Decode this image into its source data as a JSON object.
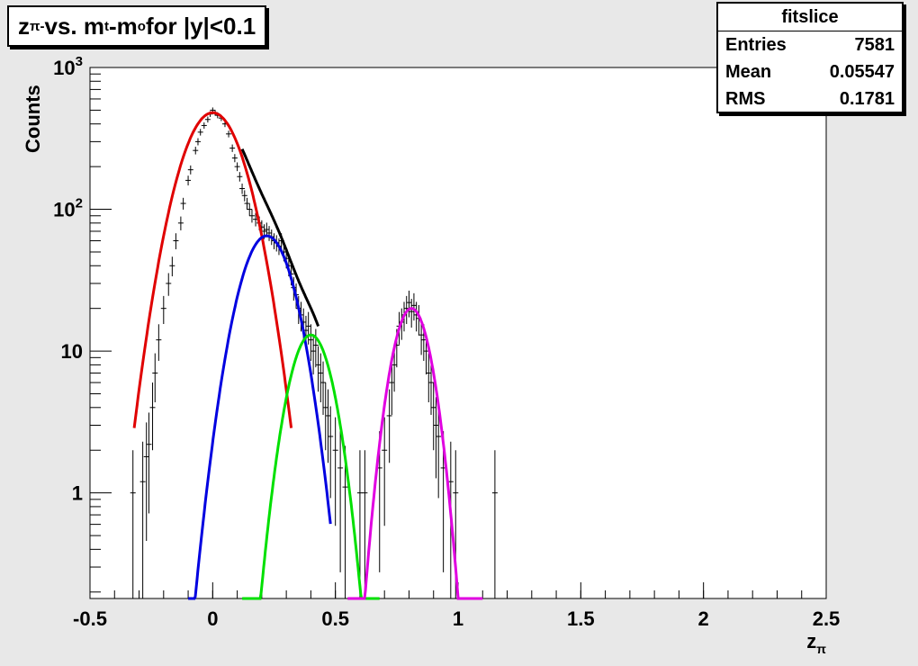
{
  "chart_data": {
    "type": "line",
    "title_main": "z",
    "title_sub1": "π-",
    "title_mid1": " vs. m",
    "title_sub2": "t",
    "title_mid2": "-m",
    "title_sub3": "o",
    "title_end": " for |y|<0.1",
    "xlabel": "z",
    "xlabel_sub": "π",
    "ylabel": "Counts",
    "xlim": [
      -0.5,
      2.5
    ],
    "ylim": [
      0.18,
      1000
    ],
    "y_scale": "log",
    "grid": false,
    "x_ticks": [
      "-0.5",
      "0",
      "0.5",
      "1",
      "1.5",
      "2",
      "2.5"
    ],
    "y_ticks": [
      {
        "label": "1",
        "value": 1
      },
      {
        "label": "10",
        "value": 10
      }
    ],
    "y_ticks_pow": [
      {
        "base": "10",
        "exp": "2",
        "value": 100
      },
      {
        "base": "10",
        "exp": "3",
        "value": 1000
      }
    ],
    "series": [
      {
        "color": "#e00000",
        "amplitude": 480,
        "mean": 0.0,
        "sigma": 0.1,
        "range": [
          -0.32,
          0.32
        ]
      },
      {
        "color": "#0000e0",
        "amplitude": 65,
        "mean": 0.22,
        "sigma": 0.085,
        "range": [
          -0.1,
          0.48
        ]
      },
      {
        "color": "#00e000",
        "amplitude": 13,
        "mean": 0.4,
        "sigma": 0.07,
        "range": [
          0.12,
          0.68
        ]
      },
      {
        "color": "#e000e0",
        "amplitude": 20,
        "mean": 0.81,
        "sigma": 0.062,
        "range": [
          0.55,
          1.1
        ]
      },
      {
        "color": "#000000",
        "type": "sum",
        "range": [
          0.12,
          0.43
        ]
      }
    ],
    "data_points": [
      [
        -0.325,
        1.0
      ],
      [
        -0.285,
        1.2
      ],
      [
        -0.27,
        1.8
      ],
      [
        -0.26,
        2.2
      ],
      [
        -0.245,
        4
      ],
      [
        -0.235,
        7
      ],
      [
        -0.22,
        12
      ],
      [
        -0.2,
        20
      ],
      [
        -0.18,
        30
      ],
      [
        -0.165,
        40
      ],
      [
        -0.15,
        60
      ],
      [
        -0.13,
        80
      ],
      [
        -0.12,
        110
      ],
      [
        -0.1,
        160
      ],
      [
        -0.09,
        190
      ],
      [
        -0.07,
        260
      ],
      [
        -0.06,
        300
      ],
      [
        -0.05,
        350
      ],
      [
        -0.035,
        390
      ],
      [
        -0.02,
        430
      ],
      [
        -0.01,
        470
      ],
      [
        0.0,
        500
      ],
      [
        0.01,
        480
      ],
      [
        0.02,
        460
      ],
      [
        0.035,
        440
      ],
      [
        0.05,
        400
      ],
      [
        0.065,
        340
      ],
      [
        0.08,
        270
      ],
      [
        0.09,
        230
      ],
      [
        0.1,
        200
      ],
      [
        0.11,
        170
      ],
      [
        0.12,
        140
      ],
      [
        0.13,
        125
      ],
      [
        0.14,
        110
      ],
      [
        0.15,
        100
      ],
      [
        0.16,
        90
      ],
      [
        0.175,
        85
      ],
      [
        0.19,
        80
      ],
      [
        0.2,
        75
      ],
      [
        0.21,
        70
      ],
      [
        0.22,
        72
      ],
      [
        0.23,
        68
      ],
      [
        0.24,
        64
      ],
      [
        0.25,
        60
      ],
      [
        0.26,
        58
      ],
      [
        0.27,
        55
      ],
      [
        0.28,
        60
      ],
      [
        0.29,
        50
      ],
      [
        0.3,
        45
      ],
      [
        0.31,
        40
      ],
      [
        0.32,
        35
      ],
      [
        0.33,
        28
      ],
      [
        0.34,
        25
      ],
      [
        0.35,
        20
      ],
      [
        0.36,
        18
      ],
      [
        0.37,
        16
      ],
      [
        0.38,
        14
      ],
      [
        0.39,
        15
      ],
      [
        0.4,
        12
      ],
      [
        0.41,
        10
      ],
      [
        0.42,
        11
      ],
      [
        0.43,
        8
      ],
      [
        0.44,
        7
      ],
      [
        0.45,
        6
      ],
      [
        0.46,
        4
      ],
      [
        0.47,
        3.5
      ],
      [
        0.48,
        2.5
      ],
      [
        0.5,
        2.0
      ],
      [
        0.52,
        1.5
      ],
      [
        0.54,
        1.1
      ],
      [
        0.6,
        1.0
      ],
      [
        0.62,
        1.0
      ],
      [
        0.68,
        1.5
      ],
      [
        0.7,
        2.0
      ],
      [
        0.72,
        3.5
      ],
      [
        0.73,
        6
      ],
      [
        0.74,
        8
      ],
      [
        0.75,
        11
      ],
      [
        0.76,
        15
      ],
      [
        0.77,
        16
      ],
      [
        0.78,
        18
      ],
      [
        0.79,
        20
      ],
      [
        0.8,
        22
      ],
      [
        0.81,
        19
      ],
      [
        0.82,
        21
      ],
      [
        0.83,
        18
      ],
      [
        0.84,
        17
      ],
      [
        0.85,
        13
      ],
      [
        0.86,
        12
      ],
      [
        0.87,
        10
      ],
      [
        0.88,
        7
      ],
      [
        0.89,
        6
      ],
      [
        0.9,
        4
      ],
      [
        0.91,
        3
      ],
      [
        0.92,
        2.5
      ],
      [
        0.94,
        1.5
      ],
      [
        0.97,
        1.2
      ],
      [
        0.99,
        1.0
      ],
      [
        1.15,
        1.0
      ]
    ]
  },
  "stats": {
    "title": "fitslice",
    "rows": [
      {
        "label": "Entries",
        "value": "7581"
      },
      {
        "label": "Mean",
        "value": "0.05547"
      },
      {
        "label": "RMS",
        "value": "0.1781"
      }
    ]
  }
}
